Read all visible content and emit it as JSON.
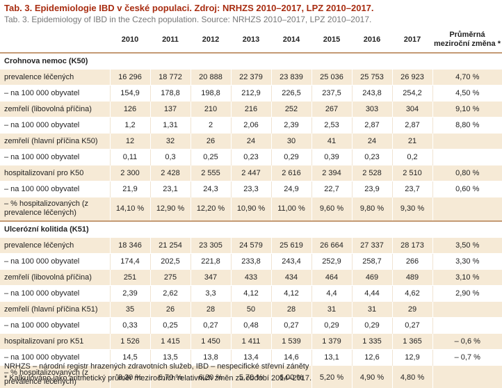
{
  "title": "Tab. 3. Epidemiologie IBD v české populaci. Zdroj: NRHZS 2010–2017, LPZ 2010–2017.",
  "subtitle": "Tab. 3. Epidemiology of IBD in the Czech population. Source: NRHZS 2010–2017, LPZ 2010–2017.",
  "header": {
    "years": [
      "2010",
      "2011",
      "2012",
      "2013",
      "2014",
      "2015",
      "2016",
      "2017"
    ],
    "trend_line1": "Průměrná",
    "trend_line2": "meziroční změna *"
  },
  "sections": [
    {
      "title": "Crohnova nemoc (K50)",
      "rows": [
        {
          "label": "prevalence léčených",
          "values": [
            "16 296",
            "18 772",
            "20 888",
            "22 379",
            "23 839",
            "25 036",
            "25 753",
            "26 923"
          ],
          "trend": "4,70 %"
        },
        {
          "label": "– na 100 000 obyvatel",
          "values": [
            "154,9",
            "178,8",
            "198,8",
            "212,9",
            "226,5",
            "237,5",
            "243,8",
            "254,2"
          ],
          "trend": "4,50 %"
        },
        {
          "label": "zemřelí (libovolná příčina)",
          "values": [
            "126",
            "137",
            "210",
            "216",
            "252",
            "267",
            "303",
            "304"
          ],
          "trend": "9,10 %"
        },
        {
          "label": "– na 100 000 obyvatel",
          "values": [
            "1,2",
            "1,31",
            "2",
            "2,06",
            "2,39",
            "2,53",
            "2,87",
            "2,87"
          ],
          "trend": "8,80 %"
        },
        {
          "label": "zemřelí (hlavní příčina K50)",
          "values": [
            "12",
            "32",
            "26",
            "24",
            "30",
            "41",
            "24",
            "21"
          ],
          "trend": ""
        },
        {
          "label": "– na 100 000 obyvatel",
          "values": [
            "0,11",
            "0,3",
            "0,25",
            "0,23",
            "0,29",
            "0,39",
            "0,23",
            "0,2"
          ],
          "trend": ""
        },
        {
          "label": "hospitalizovaní pro K50",
          "values": [
            "2 300",
            "2 428",
            "2 555",
            "2 447",
            "2 616",
            "2 394",
            "2 528",
            "2 510"
          ],
          "trend": "0,80 %"
        },
        {
          "label": "– na 100 000 obyvatel",
          "values": [
            "21,9",
            "23,1",
            "24,3",
            "23,3",
            "24,9",
            "22,7",
            "23,9",
            "23,7"
          ],
          "trend": "0,60 %"
        },
        {
          "label": "– % hospitalizovaných (z prevalence léčených)",
          "tall": true,
          "values": [
            "14,10 %",
            "12,90 %",
            "12,20 %",
            "10,90 %",
            "11,00 %",
            "9,60 %",
            "9,80 %",
            "9,30 %"
          ],
          "trend": ""
        }
      ]
    },
    {
      "title": "Ulcerózní kolitida (K51)",
      "rows": [
        {
          "label": "prevalence léčených",
          "values": [
            "18 346",
            "21 254",
            "23 305",
            "24 579",
            "25 619",
            "26 664",
            "27 337",
            "28 173"
          ],
          "trend": "3,50 %"
        },
        {
          "label": "– na 100 000 obyvatel",
          "values": [
            "174,4",
            "202,5",
            "221,8",
            "233,8",
            "243,4",
            "252,9",
            "258,7",
            "266"
          ],
          "trend": "3,30 %"
        },
        {
          "label": "zemřelí (libovolná příčina)",
          "values": [
            "251",
            "275",
            "347",
            "433",
            "434",
            "464",
            "469",
            "489"
          ],
          "trend": "3,10 %"
        },
        {
          "label": "– na 100 000 obyvatel",
          "values": [
            "2,39",
            "2,62",
            "3,3",
            "4,12",
            "4,12",
            "4,4",
            "4,44",
            "4,62"
          ],
          "trend": "2,90 %"
        },
        {
          "label": "zemřelí (hlavní příčina K51)",
          "values": [
            "35",
            "26",
            "28",
            "50",
            "28",
            "31",
            "31",
            "29"
          ],
          "trend": ""
        },
        {
          "label": "– na 100 000 obyvatel",
          "values": [
            "0,33",
            "0,25",
            "0,27",
            "0,48",
            "0,27",
            "0,29",
            "0,29",
            "0,27"
          ],
          "trend": ""
        },
        {
          "label": "hospitalizovaní pro K51",
          "values": [
            "1 526",
            "1 415",
            "1 450",
            "1 411",
            "1 539",
            "1 379",
            "1 335",
            "1 365"
          ],
          "trend": "– 0,6  %"
        },
        {
          "label": "– na 100 000 obyvatel",
          "values": [
            "14,5",
            "13,5",
            "13,8",
            "13,4",
            "14,6",
            "13,1",
            "12,6",
            "12,9"
          ],
          "trend": "– 0,7  %"
        },
        {
          "label": "– % hospitalizovaných (z prevalence léčených)",
          "tall": true,
          "values": [
            "8,30 %",
            "6,70 %",
            "6,20 %",
            "5,70 %",
            "6,00 %",
            "5,20 %",
            "4,90 %",
            "4,80 %"
          ],
          "trend": ""
        }
      ]
    }
  ],
  "footnotes": [
    "NRHZS – národní registr hrazených zdravotních služeb, IBD – nespecifické střevní záněty",
    "* Kalkulováno jako aritmetický průměr meziročních relativních změn za období 2014–2017."
  ]
}
